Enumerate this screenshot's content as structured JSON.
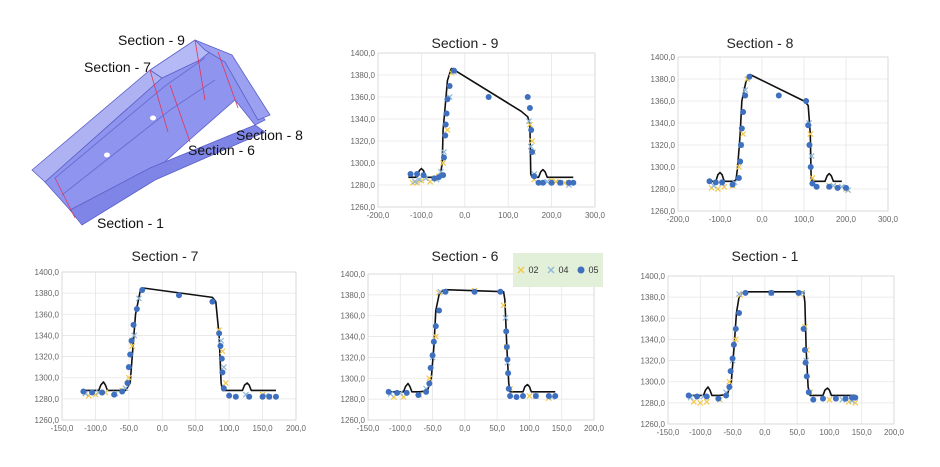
{
  "part": {
    "labels": [
      "Section - 9",
      "Section - 7",
      "Section - 8",
      "Section - 6",
      "Section - 1"
    ],
    "colors": {
      "body": "#8f95ee",
      "edge": "#5a5fc8",
      "cut": "#e0365a"
    }
  },
  "legend": {
    "items": [
      {
        "label": "02",
        "marker": "x",
        "color": "#f2c84b"
      },
      {
        "label": "04",
        "marker": "x",
        "color": "#8fb6d9"
      },
      {
        "label": "05",
        "marker": "circle",
        "color": "#3f6fbf"
      }
    ]
  },
  "colors": {
    "grid": "#e6e6e6",
    "profile": "#111111"
  },
  "chart_data": [
    {
      "type": "scatter",
      "title": "Section - 9",
      "xlim": [
        -200,
        300
      ],
      "ylim": [
        1260,
        1400
      ],
      "xticks": [
        "-200,0",
        "-100,0",
        "0,0",
        "100,0",
        "200,0",
        "300,0"
      ],
      "yticks": [
        "1260,0",
        "1280,0",
        "1300,0",
        "1320,0",
        "1340,0",
        "1360,0",
        "1380,0",
        "1400,0"
      ],
      "profile": {
        "x": [
          -130,
          -110,
          -105,
          -100,
          -95,
          -90,
          -80,
          -75,
          -62,
          -56,
          -52,
          -50,
          -40,
          -32,
          -30,
          130,
          145,
          150,
          152,
          155,
          160,
          170,
          175,
          180,
          185,
          190,
          200,
          250
        ],
        "y": [
          1287,
          1287,
          1293,
          1295,
          1293,
          1287,
          1287,
          1287,
          1287,
          1290,
          1300,
          1330,
          1375,
          1385,
          1386,
          1347,
          1342,
          1335,
          1290,
          1287,
          1287,
          1287,
          1292,
          1294,
          1292,
          1287,
          1287,
          1287
        ]
      },
      "series": [
        {
          "name": "02",
          "x": [
            -120,
            -110,
            -100,
            -80,
            -70,
            -60,
            -50,
            -40,
            -30,
            150,
            155,
            158,
            160,
            200,
            210,
            230
          ],
          "y": [
            1282,
            1282,
            1284,
            1283,
            1286,
            1288,
            1300,
            1330,
            1382,
            1335,
            1320,
            1310,
            1285,
            1284,
            1283,
            1282
          ]
        },
        {
          "name": "04",
          "x": [
            -115,
            -105,
            -90,
            -65,
            -55,
            -48,
            -35,
            -25,
            148,
            152,
            160,
            190,
            220,
            240
          ],
          "y": [
            1283,
            1285,
            1286,
            1285,
            1292,
            1310,
            1360,
            1383,
            1338,
            1315,
            1290,
            1283,
            1282,
            1280
          ]
        },
        {
          "name": "05",
          "x": [
            -125,
            -110,
            -95,
            -70,
            -60,
            -50,
            -48,
            -45,
            -44,
            -42,
            -40,
            -35,
            -25,
            55,
            145,
            150,
            153,
            155,
            160,
            170,
            180,
            200,
            220,
            240,
            250
          ],
          "y": [
            1290,
            1290,
            1289,
            1286,
            1287,
            1289,
            1305,
            1325,
            1335,
            1345,
            1358,
            1370,
            1384,
            1360,
            1360,
            1350,
            1330,
            1310,
            1288,
            1282,
            1282,
            1282,
            1282,
            1282,
            1282
          ]
        }
      ]
    },
    {
      "type": "scatter",
      "title": "Section - 8",
      "xlim": [
        -200,
        300
      ],
      "ylim": [
        1260,
        1400
      ],
      "xticks": [
        "-200,0",
        "-100,0",
        "0,0",
        "100,0",
        "200,0",
        "300,0"
      ],
      "yticks": [
        "1260,0",
        "1280,0",
        "1300,0",
        "1320,0",
        "1340,0",
        "1360,0",
        "1380,0",
        "1400,0"
      ],
      "profile": {
        "x": [
          -125,
          -110,
          -105,
          -100,
          -95,
          -90,
          -78,
          -70,
          -62,
          -58,
          -52,
          -48,
          -38,
          -30,
          -28,
          100,
          110,
          115,
          117,
          120,
          125,
          150,
          155,
          160,
          165,
          170,
          190
        ],
        "y": [
          1287,
          1287,
          1293,
          1295,
          1293,
          1287,
          1287,
          1287,
          1288,
          1300,
          1330,
          1360,
          1378,
          1383,
          1384,
          1360,
          1356,
          1330,
          1290,
          1287,
          1287,
          1287,
          1292,
          1294,
          1292,
          1287,
          1287
        ]
      },
      "series": [
        {
          "name": "02",
          "x": [
            -120,
            -105,
            -90,
            -70,
            -55,
            -45,
            -35,
            115,
            120,
            160,
            180,
            200
          ],
          "y": [
            1281,
            1280,
            1282,
            1283,
            1300,
            1330,
            1380,
            1330,
            1290,
            1283,
            1282,
            1280
          ]
        },
        {
          "name": "04",
          "x": [
            -115,
            -95,
            -65,
            -50,
            -40,
            112,
            118,
            170,
            190,
            205
          ],
          "y": [
            1283,
            1285,
            1286,
            1320,
            1370,
            1340,
            1310,
            1283,
            1282,
            1279
          ]
        },
        {
          "name": "05",
          "x": [
            -125,
            -110,
            -95,
            -70,
            -55,
            -52,
            -50,
            -48,
            -45,
            -40,
            -30,
            40,
            105,
            110,
            113,
            116,
            120,
            130,
            160,
            180,
            200
          ],
          "y": [
            1287,
            1286,
            1286,
            1284,
            1290,
            1305,
            1320,
            1335,
            1350,
            1365,
            1382,
            1365,
            1360,
            1338,
            1320,
            1300,
            1285,
            1282,
            1282,
            1281,
            1281
          ]
        }
      ]
    },
    {
      "type": "scatter",
      "title": "Section - 7",
      "xlim": [
        -150,
        200
      ],
      "ylim": [
        1260,
        1400
      ],
      "xticks": [
        "-150,0",
        "-100,0",
        "-50,0",
        "0,0",
        "50,0",
        "100,0",
        "150,0",
        "200,0"
      ],
      "yticks": [
        "1260,0",
        "1280,0",
        "1300,0",
        "1320,0",
        "1340,0",
        "1360,0",
        "1380,0",
        "1400,0"
      ],
      "profile": {
        "x": [
          -120,
          -95,
          -92,
          -88,
          -85,
          -82,
          -70,
          -55,
          -48,
          -45,
          -40,
          -33,
          -30,
          75,
          80,
          85,
          88,
          90,
          95,
          120,
          123,
          127,
          130,
          133,
          140,
          170
        ],
        "y": [
          1288,
          1288,
          1293,
          1296,
          1293,
          1288,
          1288,
          1288,
          1295,
          1320,
          1360,
          1382,
          1385,
          1376,
          1372,
          1340,
          1295,
          1288,
          1288,
          1288,
          1293,
          1295,
          1293,
          1288,
          1288,
          1288
        ]
      },
      "series": [
        {
          "name": "02",
          "x": [
            -110,
            -100,
            -85,
            -60,
            -50,
            -45,
            85,
            90,
            95,
            150,
            160
          ],
          "y": [
            1283,
            1284,
            1286,
            1288,
            1300,
            1330,
            1345,
            1325,
            1295,
            1284,
            1282
          ]
        },
        {
          "name": "04",
          "x": [
            -115,
            -95,
            -70,
            -55,
            -42,
            -35,
            88,
            92,
            125,
            155
          ],
          "y": [
            1285,
            1286,
            1285,
            1290,
            1340,
            1375,
            1335,
            1310,
            1284,
            1283
          ]
        },
        {
          "name": "05",
          "x": [
            -118,
            -105,
            -90,
            -72,
            -60,
            -52,
            -50,
            -48,
            -46,
            -43,
            -38,
            -30,
            25,
            75,
            85,
            87,
            89,
            90,
            92,
            100,
            110,
            130,
            150,
            160,
            170
          ],
          "y": [
            1287,
            1286,
            1286,
            1284,
            1287,
            1295,
            1310,
            1322,
            1335,
            1350,
            1365,
            1383,
            1378,
            1372,
            1342,
            1330,
            1318,
            1305,
            1290,
            1283,
            1282,
            1282,
            1282,
            1282,
            1282
          ]
        }
      ]
    },
    {
      "type": "scatter",
      "title": "Section - 6",
      "xlim": [
        -150,
        200
      ],
      "ylim": [
        1260,
        1400
      ],
      "xticks": [
        "-150,0",
        "-100,0",
        "-50,0",
        "0,0",
        "50,0",
        "100,0",
        "150,0",
        "200,0"
      ],
      "yticks": [
        "1260,0",
        "1280,0",
        "1300,0",
        "1320,0",
        "1340,0",
        "1360,0",
        "1380,0",
        "1400,0"
      ],
      "profile": {
        "x": [
          -120,
          -95,
          -92,
          -88,
          -85,
          -82,
          -70,
          -58,
          -52,
          -48,
          -45,
          -40,
          -35,
          -30,
          60,
          62,
          65,
          68,
          70,
          75,
          90,
          93,
          97,
          100,
          103,
          110,
          140
        ],
        "y": [
          1287,
          1287,
          1292,
          1295,
          1292,
          1287,
          1287,
          1288,
          1300,
          1330,
          1365,
          1380,
          1384,
          1385,
          1383,
          1375,
          1330,
          1295,
          1287,
          1287,
          1287,
          1292,
          1294,
          1292,
          1287,
          1287,
          1287
        ]
      },
      "series": [
        {
          "name": "02",
          "x": [
            -110,
            -95,
            -70,
            -55,
            -45,
            -40,
            15,
            60,
            65,
            70,
            100,
            130
          ],
          "y": [
            1282,
            1282,
            1284,
            1300,
            1340,
            1382,
            1384,
            1370,
            1330,
            1290,
            1283,
            1281
          ]
        },
        {
          "name": "04",
          "x": [
            -115,
            -100,
            -60,
            -50,
            -38,
            63,
            66,
            110,
            135
          ],
          "y": [
            1285,
            1286,
            1290,
            1320,
            1383,
            1358,
            1315,
            1283,
            1282
          ]
        },
        {
          "name": "05",
          "x": [
            -118,
            -105,
            -90,
            -72,
            -60,
            -55,
            -53,
            -50,
            -48,
            -45,
            -40,
            -30,
            15,
            55,
            64,
            65,
            66,
            67,
            68,
            70,
            80,
            90,
            110,
            130,
            140
          ],
          "y": [
            1287,
            1286,
            1286,
            1284,
            1287,
            1295,
            1310,
            1322,
            1335,
            1350,
            1365,
            1383,
            1383,
            1383,
            1345,
            1330,
            1318,
            1305,
            1290,
            1283,
            1282,
            1283,
            1283,
            1283,
            1283
          ]
        }
      ]
    },
    {
      "type": "scatter",
      "title": "Section - 1",
      "xlim": [
        -150,
        200
      ],
      "ylim": [
        1260,
        1400
      ],
      "xticks": [
        "-150,0",
        "-100,0",
        "-50,0",
        "0,0",
        "50,0",
        "100,0",
        "150,0",
        "200,0"
      ],
      "yticks": [
        "1260,0",
        "1280,0",
        "1300,0",
        "1320,0",
        "1340,0",
        "1360,0",
        "1380,0",
        "1400,0"
      ],
      "profile": {
        "x": [
          -120,
          -95,
          -92,
          -88,
          -85,
          -82,
          -70,
          -58,
          -52,
          -48,
          -44,
          -40,
          -35,
          -30,
          60,
          62,
          64,
          67,
          70,
          75,
          90,
          93,
          97,
          100,
          103,
          110,
          140
        ],
        "y": [
          1287,
          1287,
          1292,
          1295,
          1292,
          1287,
          1287,
          1288,
          1300,
          1330,
          1365,
          1380,
          1384,
          1385,
          1385,
          1375,
          1330,
          1295,
          1287,
          1287,
          1287,
          1292,
          1294,
          1292,
          1287,
          1287,
          1287
        ]
      },
      "series": [
        {
          "name": "02",
          "x": [
            -110,
            -100,
            -90,
            -70,
            -55,
            -45,
            -38,
            55,
            62,
            65,
            70,
            100,
            130,
            140
          ],
          "y": [
            1281,
            1280,
            1281,
            1283,
            1300,
            1340,
            1382,
            1383,
            1352,
            1330,
            1290,
            1283,
            1281,
            1280
          ]
        },
        {
          "name": "04",
          "x": [
            -115,
            -95,
            -60,
            -50,
            -40,
            10,
            58,
            64,
            120,
            135
          ],
          "y": [
            1285,
            1286,
            1290,
            1320,
            1383,
            1384,
            1384,
            1320,
            1283,
            1282
          ]
        },
        {
          "name": "05",
          "x": [
            -118,
            -105,
            -90,
            -72,
            -60,
            -55,
            -53,
            -50,
            -48,
            -45,
            -40,
            -30,
            10,
            52,
            60,
            62,
            63,
            65,
            68,
            75,
            90,
            110,
            125,
            135,
            140
          ],
          "y": [
            1287,
            1286,
            1286,
            1284,
            1287,
            1295,
            1310,
            1322,
            1335,
            1350,
            1365,
            1384,
            1384,
            1384,
            1350,
            1330,
            1318,
            1305,
            1290,
            1283,
            1284,
            1284,
            1284,
            1285,
            1285
          ]
        }
      ]
    }
  ]
}
